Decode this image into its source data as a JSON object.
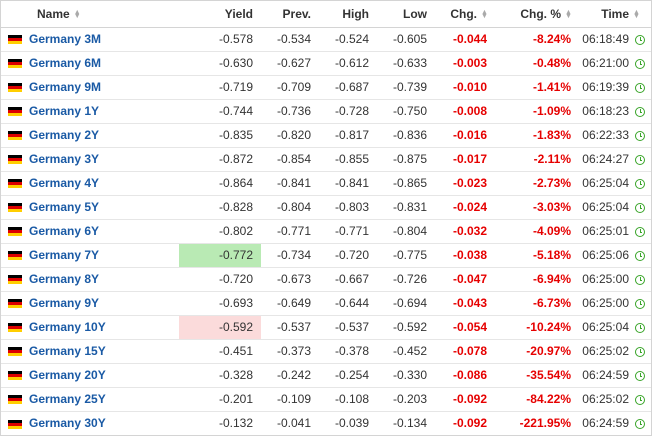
{
  "header": {
    "name": "Name",
    "yield": "Yield",
    "prev": "Prev.",
    "high": "High",
    "low": "Low",
    "chg": "Chg.",
    "chg_pct": "Chg. %",
    "time": "Time"
  },
  "icons": {
    "flag": "germany-flag-icon",
    "clock": "clock-icon",
    "sort": "sort-icon"
  },
  "colors": {
    "link": "#1a5aa5",
    "negative": "#e60000",
    "highlight_up": "#b9eab4",
    "highlight_down": "#fbdbdb",
    "clock": "#3aa52a"
  },
  "rows": [
    {
      "name": "Germany 3M",
      "yield": "-0.578",
      "prev": "-0.534",
      "high": "-0.524",
      "low": "-0.605",
      "chg": "-0.044",
      "chg_pct": "-8.24%",
      "time": "06:18:49"
    },
    {
      "name": "Germany 6M",
      "yield": "-0.630",
      "prev": "-0.627",
      "high": "-0.612",
      "low": "-0.633",
      "chg": "-0.003",
      "chg_pct": "-0.48%",
      "time": "06:21:00"
    },
    {
      "name": "Germany 9M",
      "yield": "-0.719",
      "prev": "-0.709",
      "high": "-0.687",
      "low": "-0.739",
      "chg": "-0.010",
      "chg_pct": "-1.41%",
      "time": "06:19:39"
    },
    {
      "name": "Germany 1Y",
      "yield": "-0.744",
      "prev": "-0.736",
      "high": "-0.728",
      "low": "-0.750",
      "chg": "-0.008",
      "chg_pct": "-1.09%",
      "time": "06:18:23"
    },
    {
      "name": "Germany 2Y",
      "yield": "-0.835",
      "prev": "-0.820",
      "high": "-0.817",
      "low": "-0.836",
      "chg": "-0.016",
      "chg_pct": "-1.83%",
      "time": "06:22:33"
    },
    {
      "name": "Germany 3Y",
      "yield": "-0.872",
      "prev": "-0.854",
      "high": "-0.855",
      "low": "-0.875",
      "chg": "-0.017",
      "chg_pct": "-2.11%",
      "time": "06:24:27"
    },
    {
      "name": "Germany 4Y",
      "yield": "-0.864",
      "prev": "-0.841",
      "high": "-0.841",
      "low": "-0.865",
      "chg": "-0.023",
      "chg_pct": "-2.73%",
      "time": "06:25:04"
    },
    {
      "name": "Germany 5Y",
      "yield": "-0.828",
      "prev": "-0.804",
      "high": "-0.803",
      "low": "-0.831",
      "chg": "-0.024",
      "chg_pct": "-3.03%",
      "time": "06:25:04"
    },
    {
      "name": "Germany 6Y",
      "yield": "-0.802",
      "prev": "-0.771",
      "high": "-0.771",
      "low": "-0.804",
      "chg": "-0.032",
      "chg_pct": "-4.09%",
      "time": "06:25:01"
    },
    {
      "name": "Germany 7Y",
      "yield": "-0.772",
      "prev": "-0.734",
      "high": "-0.720",
      "low": "-0.775",
      "chg": "-0.038",
      "chg_pct": "-5.18%",
      "time": "06:25:06",
      "highlight": "up"
    },
    {
      "name": "Germany 8Y",
      "yield": "-0.720",
      "prev": "-0.673",
      "high": "-0.667",
      "low": "-0.726",
      "chg": "-0.047",
      "chg_pct": "-6.94%",
      "time": "06:25:00"
    },
    {
      "name": "Germany 9Y",
      "yield": "-0.693",
      "prev": "-0.649",
      "high": "-0.644",
      "low": "-0.694",
      "chg": "-0.043",
      "chg_pct": "-6.73%",
      "time": "06:25:00"
    },
    {
      "name": "Germany 10Y",
      "yield": "-0.592",
      "prev": "-0.537",
      "high": "-0.537",
      "low": "-0.592",
      "chg": "-0.054",
      "chg_pct": "-10.24%",
      "time": "06:25:04",
      "highlight": "down"
    },
    {
      "name": "Germany 15Y",
      "yield": "-0.451",
      "prev": "-0.373",
      "high": "-0.378",
      "low": "-0.452",
      "chg": "-0.078",
      "chg_pct": "-20.97%",
      "time": "06:25:02"
    },
    {
      "name": "Germany 20Y",
      "yield": "-0.328",
      "prev": "-0.242",
      "high": "-0.254",
      "low": "-0.330",
      "chg": "-0.086",
      "chg_pct": "-35.54%",
      "time": "06:24:59"
    },
    {
      "name": "Germany 25Y",
      "yield": "-0.201",
      "prev": "-0.109",
      "high": "-0.108",
      "low": "-0.203",
      "chg": "-0.092",
      "chg_pct": "-84.22%",
      "time": "06:25:02"
    },
    {
      "name": "Germany 30Y",
      "yield": "-0.132",
      "prev": "-0.041",
      "high": "-0.039",
      "low": "-0.134",
      "chg": "-0.092",
      "chg_pct": "-221.95%",
      "time": "06:24:59"
    }
  ]
}
